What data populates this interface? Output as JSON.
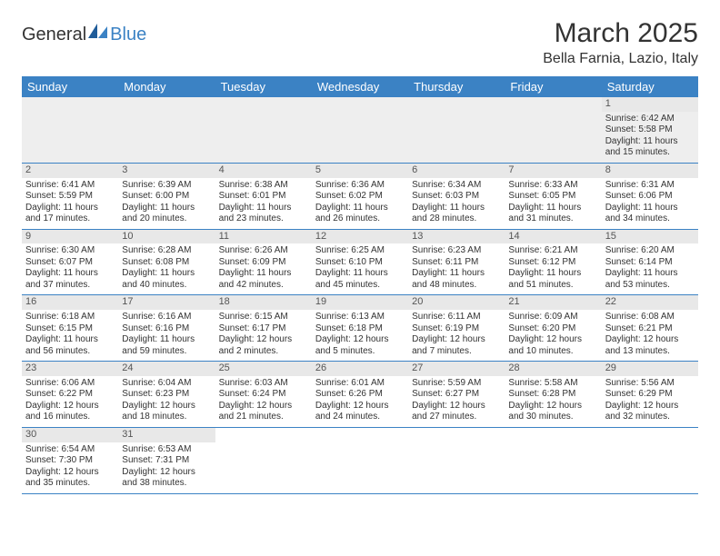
{
  "logo": {
    "text1": "General",
    "text2": "Blue"
  },
  "title": "March 2025",
  "location": "Bella Farnia, Lazio, Italy",
  "colors": {
    "header_bg": "#3b82c4",
    "header_text": "#ffffff",
    "grey_row": "#eeeeee",
    "border": "#3b82c4",
    "text": "#333333"
  },
  "day_names": [
    "Sunday",
    "Monday",
    "Tuesday",
    "Wednesday",
    "Thursday",
    "Friday",
    "Saturday"
  ],
  "weeks": [
    [
      null,
      null,
      null,
      null,
      null,
      null,
      {
        "n": "1",
        "sr": "Sunrise: 6:42 AM",
        "ss": "Sunset: 5:58 PM",
        "d1": "Daylight: 11 hours",
        "d2": "and 15 minutes."
      }
    ],
    [
      {
        "n": "2",
        "sr": "Sunrise: 6:41 AM",
        "ss": "Sunset: 5:59 PM",
        "d1": "Daylight: 11 hours",
        "d2": "and 17 minutes."
      },
      {
        "n": "3",
        "sr": "Sunrise: 6:39 AM",
        "ss": "Sunset: 6:00 PM",
        "d1": "Daylight: 11 hours",
        "d2": "and 20 minutes."
      },
      {
        "n": "4",
        "sr": "Sunrise: 6:38 AM",
        "ss": "Sunset: 6:01 PM",
        "d1": "Daylight: 11 hours",
        "d2": "and 23 minutes."
      },
      {
        "n": "5",
        "sr": "Sunrise: 6:36 AM",
        "ss": "Sunset: 6:02 PM",
        "d1": "Daylight: 11 hours",
        "d2": "and 26 minutes."
      },
      {
        "n": "6",
        "sr": "Sunrise: 6:34 AM",
        "ss": "Sunset: 6:03 PM",
        "d1": "Daylight: 11 hours",
        "d2": "and 28 minutes."
      },
      {
        "n": "7",
        "sr": "Sunrise: 6:33 AM",
        "ss": "Sunset: 6:05 PM",
        "d1": "Daylight: 11 hours",
        "d2": "and 31 minutes."
      },
      {
        "n": "8",
        "sr": "Sunrise: 6:31 AM",
        "ss": "Sunset: 6:06 PM",
        "d1": "Daylight: 11 hours",
        "d2": "and 34 minutes."
      }
    ],
    [
      {
        "n": "9",
        "sr": "Sunrise: 6:30 AM",
        "ss": "Sunset: 6:07 PM",
        "d1": "Daylight: 11 hours",
        "d2": "and 37 minutes."
      },
      {
        "n": "10",
        "sr": "Sunrise: 6:28 AM",
        "ss": "Sunset: 6:08 PM",
        "d1": "Daylight: 11 hours",
        "d2": "and 40 minutes."
      },
      {
        "n": "11",
        "sr": "Sunrise: 6:26 AM",
        "ss": "Sunset: 6:09 PM",
        "d1": "Daylight: 11 hours",
        "d2": "and 42 minutes."
      },
      {
        "n": "12",
        "sr": "Sunrise: 6:25 AM",
        "ss": "Sunset: 6:10 PM",
        "d1": "Daylight: 11 hours",
        "d2": "and 45 minutes."
      },
      {
        "n": "13",
        "sr": "Sunrise: 6:23 AM",
        "ss": "Sunset: 6:11 PM",
        "d1": "Daylight: 11 hours",
        "d2": "and 48 minutes."
      },
      {
        "n": "14",
        "sr": "Sunrise: 6:21 AM",
        "ss": "Sunset: 6:12 PM",
        "d1": "Daylight: 11 hours",
        "d2": "and 51 minutes."
      },
      {
        "n": "15",
        "sr": "Sunrise: 6:20 AM",
        "ss": "Sunset: 6:14 PM",
        "d1": "Daylight: 11 hours",
        "d2": "and 53 minutes."
      }
    ],
    [
      {
        "n": "16",
        "sr": "Sunrise: 6:18 AM",
        "ss": "Sunset: 6:15 PM",
        "d1": "Daylight: 11 hours",
        "d2": "and 56 minutes."
      },
      {
        "n": "17",
        "sr": "Sunrise: 6:16 AM",
        "ss": "Sunset: 6:16 PM",
        "d1": "Daylight: 11 hours",
        "d2": "and 59 minutes."
      },
      {
        "n": "18",
        "sr": "Sunrise: 6:15 AM",
        "ss": "Sunset: 6:17 PM",
        "d1": "Daylight: 12 hours",
        "d2": "and 2 minutes."
      },
      {
        "n": "19",
        "sr": "Sunrise: 6:13 AM",
        "ss": "Sunset: 6:18 PM",
        "d1": "Daylight: 12 hours",
        "d2": "and 5 minutes."
      },
      {
        "n": "20",
        "sr": "Sunrise: 6:11 AM",
        "ss": "Sunset: 6:19 PM",
        "d1": "Daylight: 12 hours",
        "d2": "and 7 minutes."
      },
      {
        "n": "21",
        "sr": "Sunrise: 6:09 AM",
        "ss": "Sunset: 6:20 PM",
        "d1": "Daylight: 12 hours",
        "d2": "and 10 minutes."
      },
      {
        "n": "22",
        "sr": "Sunrise: 6:08 AM",
        "ss": "Sunset: 6:21 PM",
        "d1": "Daylight: 12 hours",
        "d2": "and 13 minutes."
      }
    ],
    [
      {
        "n": "23",
        "sr": "Sunrise: 6:06 AM",
        "ss": "Sunset: 6:22 PM",
        "d1": "Daylight: 12 hours",
        "d2": "and 16 minutes."
      },
      {
        "n": "24",
        "sr": "Sunrise: 6:04 AM",
        "ss": "Sunset: 6:23 PM",
        "d1": "Daylight: 12 hours",
        "d2": "and 18 minutes."
      },
      {
        "n": "25",
        "sr": "Sunrise: 6:03 AM",
        "ss": "Sunset: 6:24 PM",
        "d1": "Daylight: 12 hours",
        "d2": "and 21 minutes."
      },
      {
        "n": "26",
        "sr": "Sunrise: 6:01 AM",
        "ss": "Sunset: 6:26 PM",
        "d1": "Daylight: 12 hours",
        "d2": "and 24 minutes."
      },
      {
        "n": "27",
        "sr": "Sunrise: 5:59 AM",
        "ss": "Sunset: 6:27 PM",
        "d1": "Daylight: 12 hours",
        "d2": "and 27 minutes."
      },
      {
        "n": "28",
        "sr": "Sunrise: 5:58 AM",
        "ss": "Sunset: 6:28 PM",
        "d1": "Daylight: 12 hours",
        "d2": "and 30 minutes."
      },
      {
        "n": "29",
        "sr": "Sunrise: 5:56 AM",
        "ss": "Sunset: 6:29 PM",
        "d1": "Daylight: 12 hours",
        "d2": "and 32 minutes."
      }
    ],
    [
      {
        "n": "30",
        "sr": "Sunrise: 6:54 AM",
        "ss": "Sunset: 7:30 PM",
        "d1": "Daylight: 12 hours",
        "d2": "and 35 minutes."
      },
      {
        "n": "31",
        "sr": "Sunrise: 6:53 AM",
        "ss": "Sunset: 7:31 PM",
        "d1": "Daylight: 12 hours",
        "d2": "and 38 minutes."
      },
      null,
      null,
      null,
      null,
      null
    ]
  ]
}
